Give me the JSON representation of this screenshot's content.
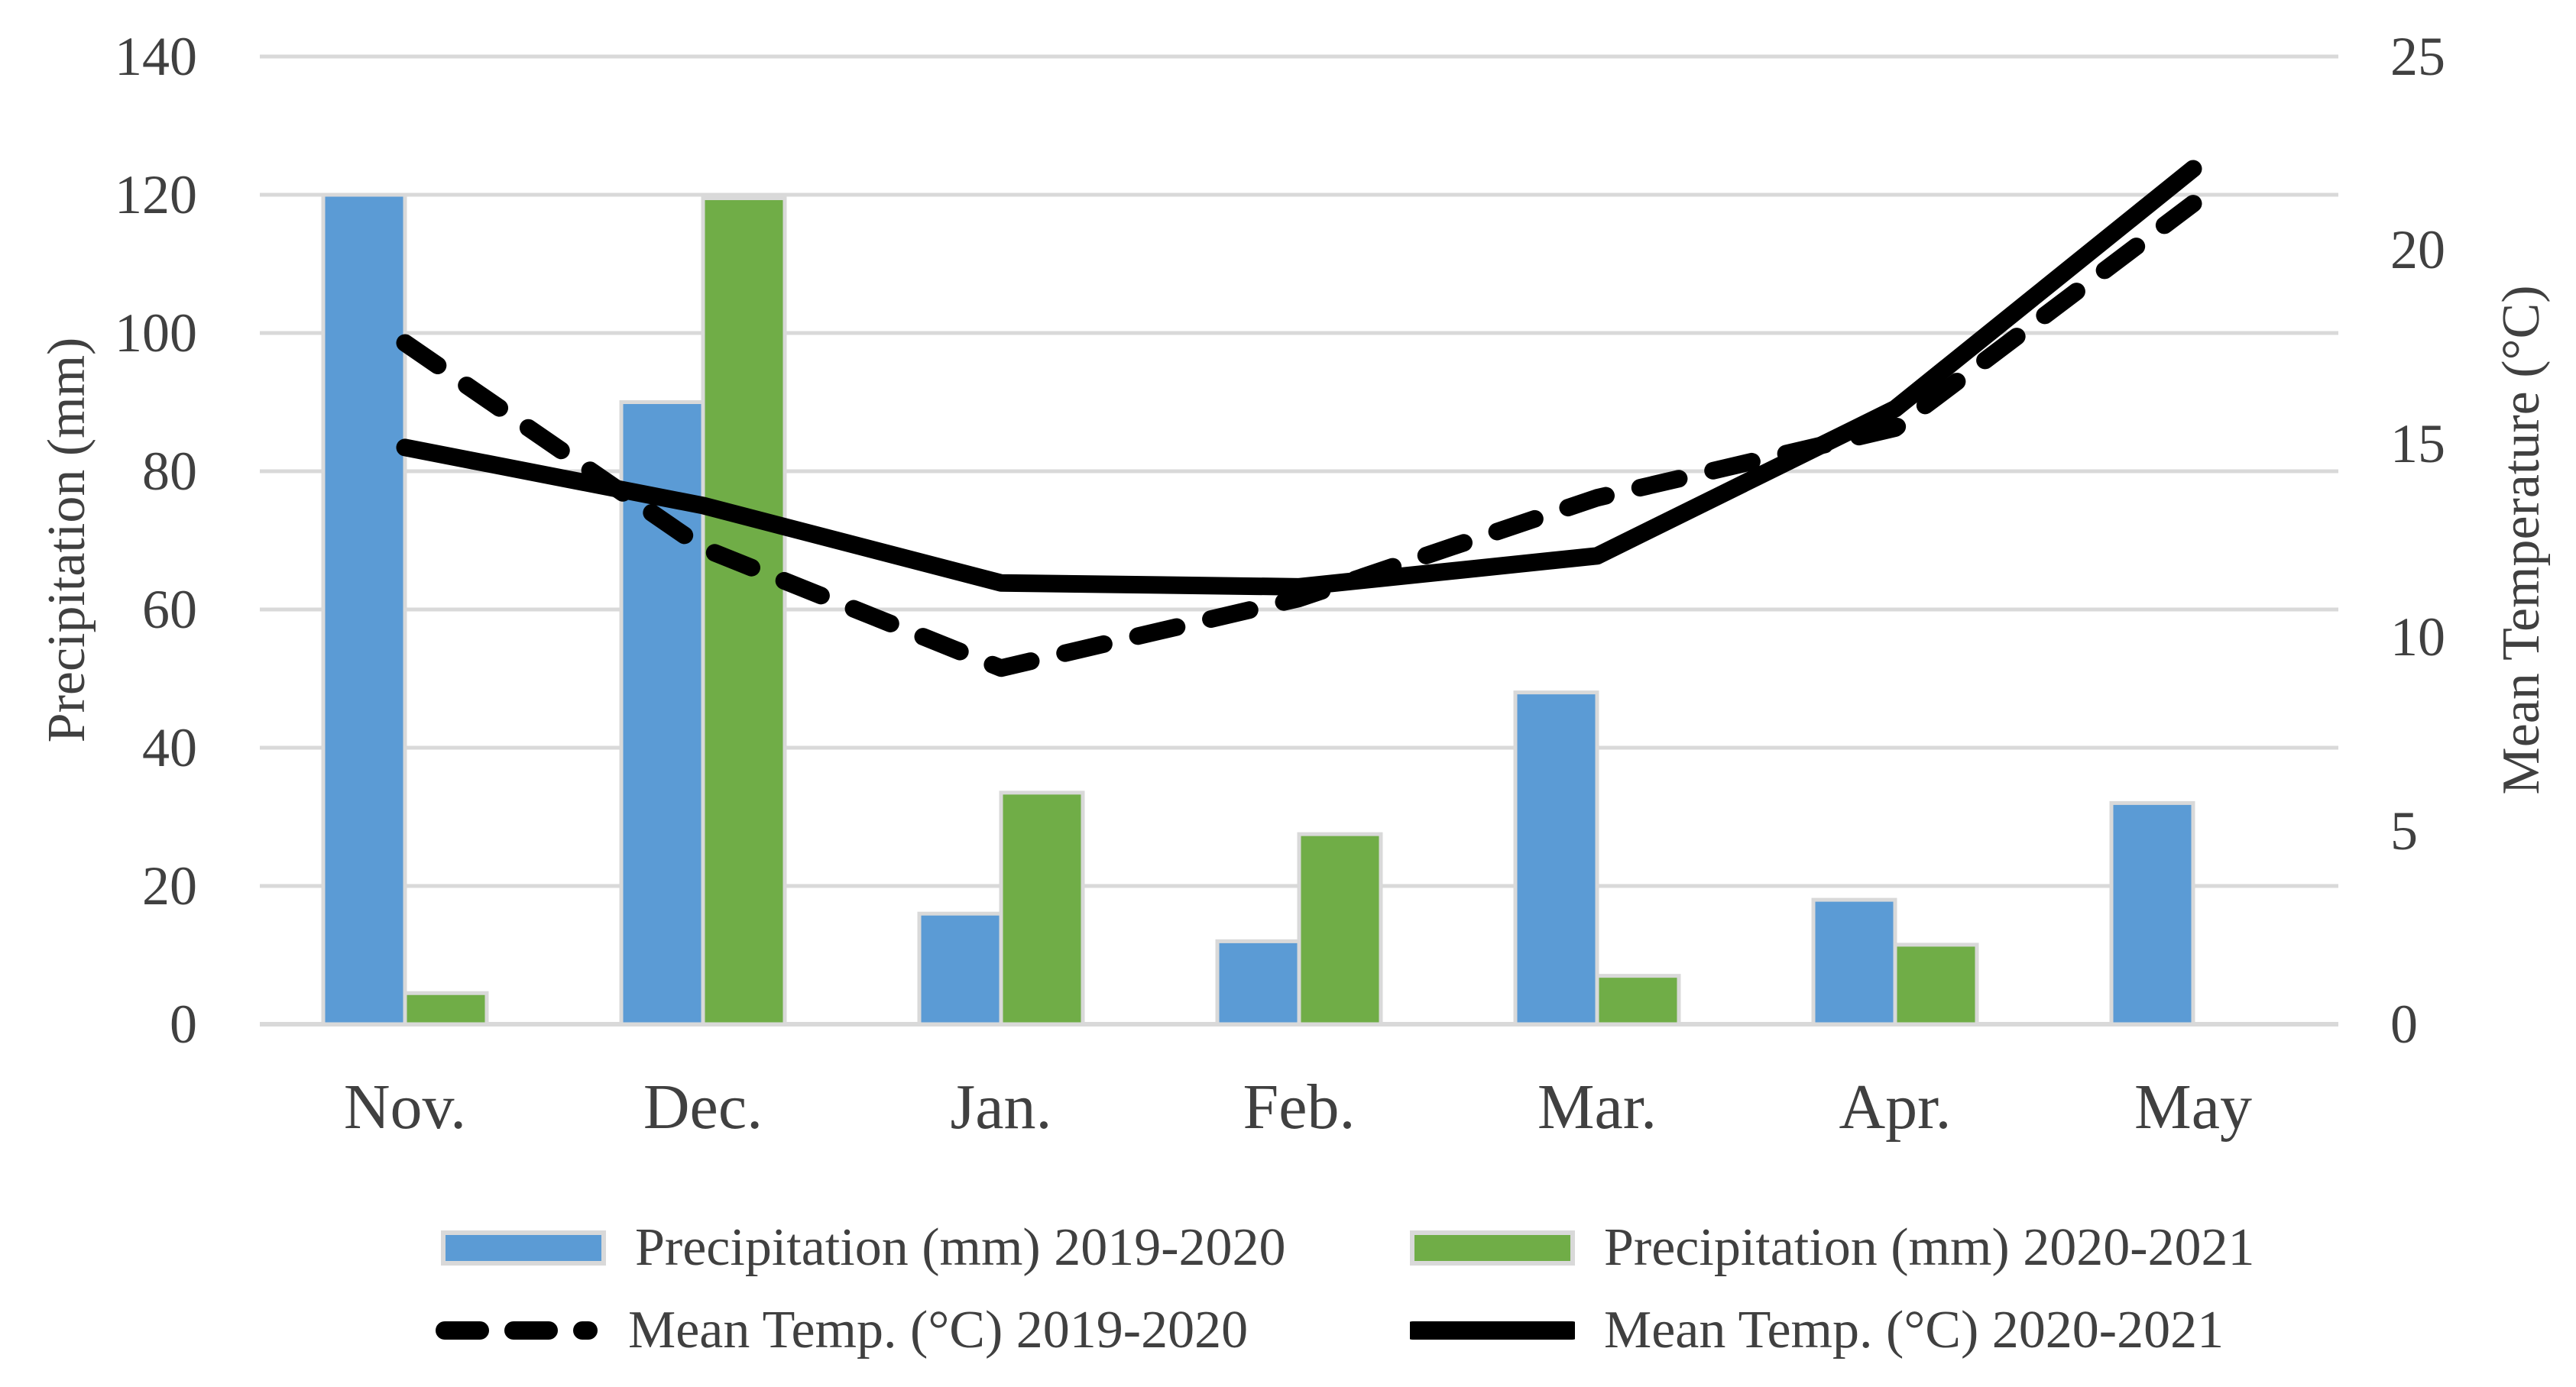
{
  "chart_data": {
    "type": "combo-bar-line",
    "title": "",
    "categories": [
      "Nov.",
      "Dec.",
      "Jan.",
      "Feb.",
      "Mar.",
      "Apr.",
      "May"
    ],
    "series": [
      {
        "name": "Precipitation (mm) 2019-2020",
        "type": "bar",
        "color": "#5B9BD5",
        "axis": "left",
        "values": [
          120,
          90,
          16,
          12,
          48,
          18,
          32
        ]
      },
      {
        "name": "Precipitation (mm) 2020-2021",
        "type": "bar",
        "color": "#70AD47",
        "axis": "left",
        "values": [
          4.5,
          119.5,
          33.5,
          27.5,
          7,
          11.5,
          0
        ]
      },
      {
        "name": "Mean Temp. (°C) 2019-2020",
        "type": "line",
        "style": "dashed",
        "color": "#000000",
        "axis": "right",
        "values": [
          17.6,
          12.3,
          9.2,
          11.0,
          13.6,
          15.4,
          21.2
        ]
      },
      {
        "name": "Mean Temp. (°C) 2020-2021",
        "type": "line",
        "style": "solid",
        "color": "#000000",
        "axis": "right",
        "values": [
          14.9,
          13.4,
          11.4,
          11.3,
          12.1,
          15.9,
          22.1
        ]
      }
    ],
    "left_axis": {
      "label": "Precipitation (mm)",
      "min": 0,
      "max": 140,
      "ticks": [
        0,
        20,
        40,
        60,
        80,
        100,
        120,
        140
      ]
    },
    "right_axis": {
      "label": "Mean Temperature (°C)",
      "min": 0,
      "max": 25,
      "ticks": [
        0,
        5,
        10,
        15,
        20,
        25
      ]
    },
    "grid": true,
    "legend_position": "bottom"
  },
  "colors": {
    "gridline": "#D9D9D9",
    "bar_border": "#D9D9D9",
    "text": "#404040",
    "line": "#000000",
    "background": "#FFFFFF"
  }
}
